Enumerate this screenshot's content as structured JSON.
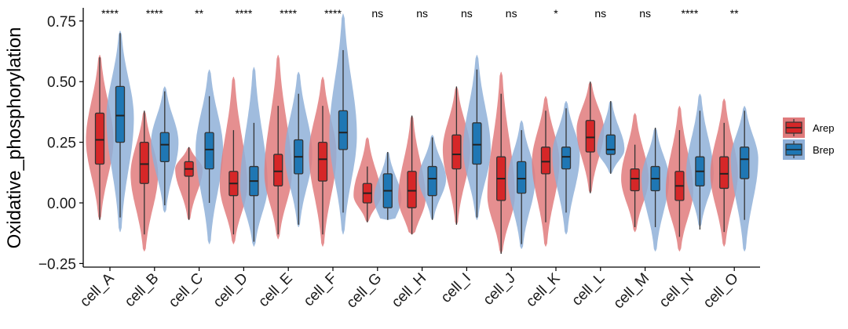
{
  "chart_data": {
    "type": "violin-box",
    "title": "",
    "xlabel": "",
    "ylabel": "Oxidative_phosphorylation",
    "ylim": [
      -0.25,
      0.8
    ],
    "yticks": [
      -0.25,
      0.0,
      0.25,
      0.5,
      0.75
    ],
    "ytick_labels": [
      "−0.25",
      "0.00",
      "0.25",
      "0.50",
      "0.75"
    ],
    "categories": [
      "cell_A",
      "cell_B",
      "cell_C",
      "cell_D",
      "cell_E",
      "cell_F",
      "cell_G",
      "cell_H",
      "cell_I",
      "cell_J",
      "cell_K",
      "cell_L",
      "cell_M",
      "cell_N",
      "cell_O"
    ],
    "significance": [
      "****",
      "****",
      "**",
      "****",
      "****",
      "****",
      "ns",
      "ns",
      "ns",
      "ns",
      "*",
      "ns",
      "ns",
      "****",
      "**"
    ],
    "legend": {
      "position": "right",
      "entries": [
        "Arep",
        "Brep"
      ]
    },
    "series": [
      {
        "name": "Arep",
        "color": "#d62728",
        "fill": "#e07b7c",
        "violin_min": [
          -0.07,
          -0.2,
          -0.07,
          -0.17,
          -0.15,
          -0.18,
          -0.08,
          -0.13,
          -0.09,
          -0.21,
          -0.18,
          0.04,
          -0.12,
          -0.2,
          -0.18
        ],
        "violin_max": [
          0.61,
          0.38,
          0.23,
          0.52,
          0.61,
          0.52,
          0.27,
          0.36,
          0.48,
          0.54,
          0.44,
          0.5,
          0.37,
          0.4,
          0.43
        ],
        "whisker_low": [
          -0.07,
          -0.13,
          -0.07,
          -0.13,
          -0.13,
          -0.13,
          -0.08,
          -0.13,
          -0.09,
          -0.21,
          -0.08,
          0.04,
          -0.1,
          -0.14,
          -0.12
        ],
        "q1": [
          0.16,
          0.08,
          0.11,
          0.03,
          0.07,
          0.09,
          0.0,
          -0.02,
          0.14,
          0.01,
          0.12,
          0.21,
          0.05,
          0.01,
          0.06
        ],
        "median": [
          0.26,
          0.16,
          0.14,
          0.08,
          0.13,
          0.18,
          0.04,
          0.05,
          0.2,
          0.1,
          0.17,
          0.27,
          0.1,
          0.07,
          0.12
        ],
        "q3": [
          0.37,
          0.25,
          0.17,
          0.13,
          0.2,
          0.25,
          0.08,
          0.13,
          0.28,
          0.19,
          0.23,
          0.34,
          0.14,
          0.13,
          0.19
        ],
        "whisker_high": [
          0.6,
          0.38,
          0.23,
          0.3,
          0.4,
          0.4,
          0.15,
          0.36,
          0.48,
          0.45,
          0.38,
          0.5,
          0.24,
          0.3,
          0.33
        ],
        "density_peak": [
          0.26,
          0.12,
          0.14,
          0.07,
          0.12,
          0.2,
          0.03,
          0.02,
          0.22,
          0.03,
          0.17,
          0.3,
          0.1,
          0.05,
          0.12
        ]
      },
      {
        "name": "Brep",
        "color": "#1f77b4",
        "fill": "#8fb0d8",
        "violin_min": [
          -0.12,
          -0.04,
          -0.17,
          -0.18,
          -0.1,
          -0.13,
          -0.07,
          -0.07,
          -0.07,
          -0.19,
          -0.13,
          0.12,
          -0.2,
          -0.1,
          -0.2
        ],
        "violin_max": [
          0.71,
          0.48,
          0.55,
          0.56,
          0.54,
          0.78,
          0.21,
          0.28,
          0.61,
          0.34,
          0.42,
          0.42,
          0.31,
          0.45,
          0.4
        ],
        "whisker_low": [
          -0.06,
          -0.01,
          0.0,
          -0.16,
          -0.09,
          -0.04,
          -0.07,
          -0.07,
          -0.06,
          -0.17,
          -0.04,
          0.12,
          -0.1,
          -0.11,
          -0.07
        ],
        "q1": [
          0.25,
          0.17,
          0.14,
          0.03,
          0.12,
          0.22,
          -0.02,
          0.03,
          0.16,
          0.04,
          0.14,
          0.2,
          0.05,
          0.07,
          0.1
        ],
        "median": [
          0.36,
          0.24,
          0.22,
          0.09,
          0.19,
          0.29,
          0.05,
          0.1,
          0.24,
          0.1,
          0.19,
          0.22,
          0.1,
          0.13,
          0.18
        ],
        "q3": [
          0.48,
          0.29,
          0.29,
          0.15,
          0.26,
          0.38,
          0.12,
          0.15,
          0.33,
          0.17,
          0.23,
          0.28,
          0.15,
          0.19,
          0.23
        ],
        "whisker_high": [
          0.7,
          0.46,
          0.44,
          0.33,
          0.45,
          0.63,
          0.21,
          0.27,
          0.55,
          0.3,
          0.39,
          0.42,
          0.31,
          0.38,
          0.38
        ],
        "density_peak": [
          0.35,
          0.25,
          0.22,
          0.07,
          0.2,
          0.28,
          0.02,
          0.1,
          0.22,
          0.1,
          0.2,
          0.22,
          0.1,
          0.12,
          0.18
        ]
      }
    ]
  }
}
